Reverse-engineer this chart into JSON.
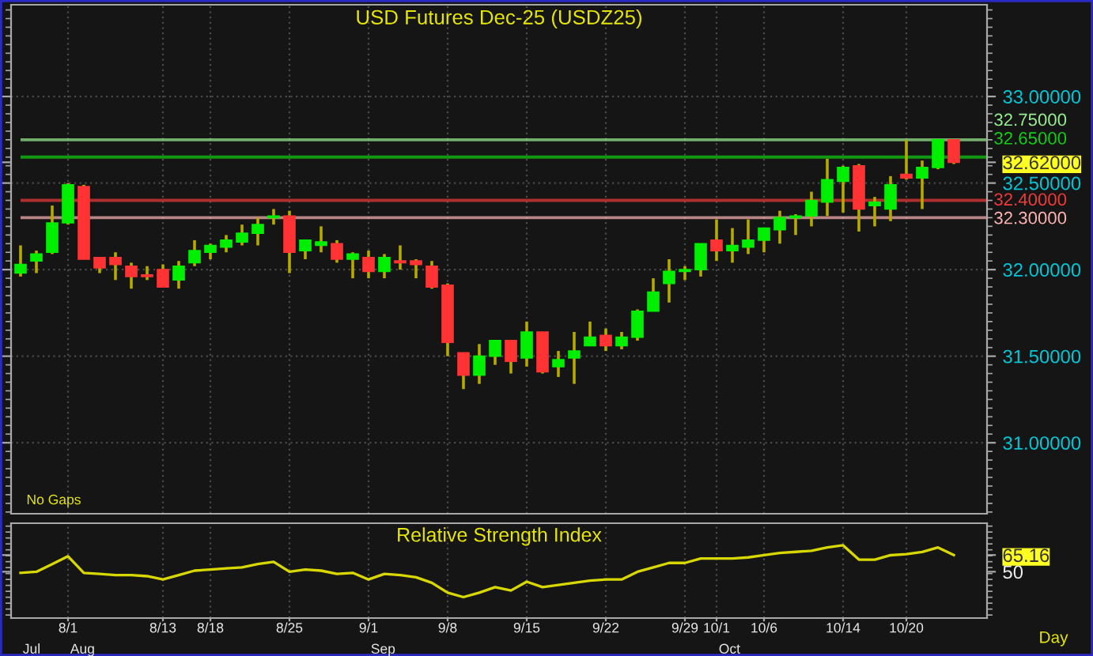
{
  "chart_data": [
    {
      "type": "candlestick",
      "title": "USD Futures Dec-25 (USDZ25)",
      "categories": [
        null,
        null,
        null,
        null,
        null,
        null,
        null,
        null,
        null,
        null,
        null,
        null,
        null,
        null,
        null,
        null,
        null,
        null,
        null,
        null,
        null,
        null,
        null,
        null,
        null,
        null,
        null,
        null,
        null,
        null,
        null,
        null,
        null,
        null,
        null,
        null,
        null,
        null,
        null,
        null,
        null,
        null,
        null,
        null,
        null,
        null,
        null,
        null,
        null,
        null,
        null,
        null,
        null,
        null,
        null,
        null,
        null,
        null,
        null,
        null
      ],
      "ohlc": [
        [
          31.98,
          32.14,
          31.96,
          32.03
        ],
        [
          32.05,
          32.11,
          31.98,
          32.09
        ],
        [
          32.1,
          32.37,
          32.09,
          32.27
        ],
        [
          32.27,
          32.5,
          32.26,
          32.49
        ],
        [
          32.48,
          32.49,
          32.06,
          32.06
        ],
        [
          32.07,
          32.07,
          31.98,
          32.01
        ],
        [
          32.07,
          32.1,
          31.94,
          32.03
        ],
        [
          32.02,
          32.04,
          31.89,
          31.96
        ],
        [
          31.97,
          32.02,
          31.94,
          31.96
        ],
        [
          32.0,
          32.03,
          31.9,
          31.9
        ],
        [
          31.94,
          32.05,
          31.89,
          32.02
        ],
        [
          32.04,
          32.17,
          32.02,
          32.11
        ],
        [
          32.1,
          32.15,
          32.06,
          32.14
        ],
        [
          32.13,
          32.2,
          32.1,
          32.17
        ],
        [
          32.16,
          32.26,
          32.14,
          32.21
        ],
        [
          32.21,
          32.3,
          32.14,
          32.26
        ],
        [
          32.3,
          32.35,
          32.26,
          32.31
        ],
        [
          32.31,
          32.34,
          31.98,
          32.1
        ],
        [
          32.11,
          32.17,
          32.06,
          32.17
        ],
        [
          32.14,
          32.25,
          32.1,
          32.16
        ],
        [
          32.15,
          32.17,
          32.04,
          32.06
        ],
        [
          32.06,
          32.1,
          31.95,
          32.09
        ],
        [
          32.07,
          32.11,
          31.95,
          31.99
        ],
        [
          31.99,
          32.09,
          31.95,
          32.07
        ],
        [
          32.05,
          32.14,
          32.0,
          32.04
        ],
        [
          32.05,
          32.06,
          31.95,
          32.03
        ],
        [
          32.02,
          32.05,
          31.89,
          31.9
        ],
        [
          31.91,
          31.92,
          31.5,
          31.58
        ],
        [
          31.52,
          31.52,
          31.31,
          31.39
        ],
        [
          31.39,
          31.57,
          31.34,
          31.5
        ],
        [
          31.5,
          31.59,
          31.45,
          31.59
        ],
        [
          31.59,
          31.59,
          31.4,
          31.47
        ],
        [
          31.49,
          31.7,
          31.44,
          31.64
        ],
        [
          31.64,
          31.64,
          31.4,
          31.41
        ],
        [
          31.44,
          31.53,
          31.38,
          31.48
        ],
        [
          31.49,
          31.64,
          31.34,
          31.53
        ],
        [
          31.56,
          31.7,
          31.56,
          31.61
        ],
        [
          31.62,
          31.66,
          31.53,
          31.56
        ],
        [
          31.56,
          31.64,
          31.54,
          31.61
        ],
        [
          31.61,
          31.77,
          31.59,
          31.76
        ],
        [
          31.76,
          31.95,
          31.76,
          31.87
        ],
        [
          31.92,
          32.06,
          31.81,
          31.99
        ],
        [
          31.99,
          32.02,
          31.94,
          32.0
        ],
        [
          32.0,
          32.15,
          31.96,
          32.15
        ],
        [
          32.17,
          32.29,
          32.05,
          32.11
        ],
        [
          32.11,
          32.24,
          32.04,
          32.14
        ],
        [
          32.13,
          32.29,
          32.09,
          32.17
        ],
        [
          32.17,
          32.24,
          32.1,
          32.24
        ],
        [
          32.23,
          32.34,
          32.15,
          32.3
        ],
        [
          32.3,
          32.32,
          32.2,
          32.31
        ],
        [
          32.31,
          32.45,
          32.25,
          32.4
        ],
        [
          32.39,
          32.64,
          32.31,
          32.52
        ],
        [
          32.51,
          32.6,
          32.33,
          32.59
        ],
        [
          32.6,
          32.61,
          32.22,
          32.35
        ],
        [
          32.37,
          32.42,
          32.25,
          32.39
        ],
        [
          32.35,
          32.54,
          32.28,
          32.49
        ],
        [
          32.55,
          32.75,
          32.52,
          32.53
        ],
        [
          32.53,
          32.63,
          32.35,
          32.59
        ],
        [
          32.59,
          32.75,
          32.58,
          32.75
        ],
        [
          32.75,
          32.75,
          32.61,
          32.62
        ]
      ],
      "colors": [
        "#00ee00",
        "#00ee00",
        "#00ee00",
        "#00ee00",
        "#ff3333",
        "#ff3333",
        "#ff3333",
        "#ff3333",
        "#ff3333",
        "#ff3333",
        "#00ee00",
        "#00ee00",
        "#00ee00",
        "#00ee00",
        "#00ee00",
        "#00ee00",
        "#00ee00",
        "#ff3333",
        "#00ee00",
        "#00ee00",
        "#ff3333",
        "#00ee00",
        "#ff3333",
        "#00ee00",
        "#ff3333",
        "#ff3333",
        "#ff3333",
        "#ff3333",
        "#ff3333",
        "#00ee00",
        "#00ee00",
        "#ff3333",
        "#00ee00",
        "#ff3333",
        "#00ee00",
        "#00ee00",
        "#00ee00",
        "#ff3333",
        "#00ee00",
        "#00ee00",
        "#00ee00",
        "#00ee00",
        "#00ee00",
        "#00ee00",
        "#ff3333",
        "#00ee00",
        "#00ee00",
        "#00ee00",
        "#00ee00",
        "#00ee00",
        "#00ee00",
        "#00ee00",
        "#00ee00",
        "#ff3333",
        "#00ee00",
        "#00ee00",
        "#ff3333",
        "#00ee00",
        "#00ee00",
        "#ff3333"
      ],
      "ylim": [
        30.59,
        33.53
      ],
      "yticks": [
        {
          "value": 31,
          "label": "31.00000"
        },
        {
          "value": 31.5,
          "label": "31.50000"
        },
        {
          "value": 32,
          "label": "32.00000"
        },
        {
          "value": 32.5,
          "label": "32.50000"
        },
        {
          "value": 32.62,
          "label": "32.62000"
        },
        {
          "value": 33,
          "label": "33.00000"
        }
      ],
      "grid": true,
      "ref_lines": [
        {
          "axis": "y",
          "value": 32.75,
          "label": "32.75000",
          "color": "#98ee90"
        },
        {
          "axis": "y",
          "value": 32.65,
          "label": "32.65000",
          "color": "#10d010"
        },
        {
          "axis": "y",
          "value": 32.4,
          "label": "32.40000",
          "color": "#f03a3a"
        },
        {
          "axis": "y",
          "value": 32.3,
          "label": "32.30000",
          "color": "#ffb4b4"
        }
      ],
      "annotations": [
        "No Gaps"
      ]
    },
    {
      "type": "line",
      "title": "Relative Strength Index",
      "xlabel": "Day",
      "categories": [
        null,
        null,
        null,
        "8/1",
        null,
        null,
        null,
        null,
        null,
        "8/13",
        null,
        null,
        "8/18",
        null,
        null,
        null,
        null,
        "8/25",
        null,
        null,
        null,
        null,
        "9/1",
        null,
        null,
        null,
        null,
        "9/8",
        null,
        null,
        null,
        null,
        "9/15",
        null,
        null,
        null,
        null,
        "9/22",
        null,
        null,
        null,
        null,
        "9/29",
        null,
        "10/1",
        null,
        null,
        "10/6",
        null,
        null,
        null,
        null,
        "10/14",
        null,
        null,
        null,
        "10/20",
        null,
        null,
        null
      ],
      "series": [
        {
          "color": "#d8d800",
          "values": [
            49,
            50,
            57,
            64,
            49,
            48,
            47,
            47,
            46,
            43,
            47,
            51,
            52,
            53,
            54,
            57,
            59,
            50,
            52,
            51,
            48,
            49,
            43,
            48,
            47,
            45,
            40,
            31,
            27,
            31,
            36,
            33,
            41,
            36,
            38,
            40,
            42,
            43,
            43,
            50,
            54,
            58,
            58,
            62,
            62,
            62,
            63,
            65,
            67,
            68,
            69,
            72,
            74,
            61,
            61,
            65,
            66,
            68,
            72,
            65.16
          ]
        }
      ],
      "ylim": [
        8,
        94
      ],
      "yticks": [
        50,
        65.16
      ],
      "grid": "x",
      "annotations": [
        "Jul",
        "Aug",
        "Sep",
        "Oct"
      ]
    }
  ]
}
